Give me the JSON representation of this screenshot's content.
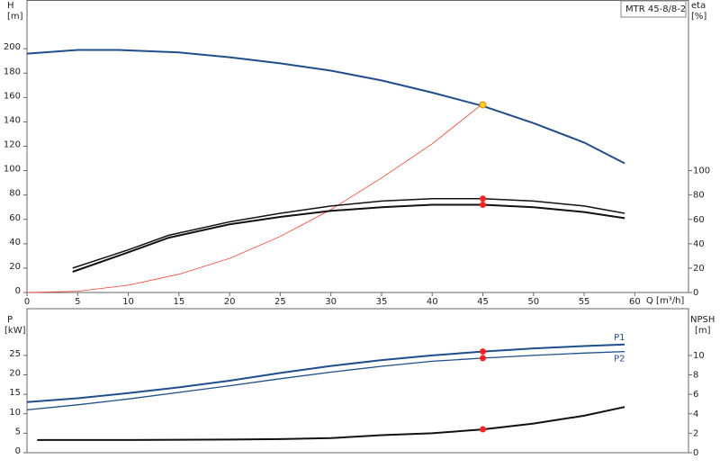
{
  "chart_data": [
    {
      "type": "line",
      "model_label": "MTR 45-8/8-2",
      "y_label": "H",
      "y_unit": "[m]",
      "y2_label": "eta",
      "y2_unit": "[%]",
      "x_label": "Q [m³/h]",
      "xlim": [
        0,
        65.3
      ],
      "xticks": [
        0,
        5,
        10,
        15,
        20,
        25,
        30,
        35,
        40,
        45,
        50,
        55,
        60
      ],
      "ylim": [
        0,
        240
      ],
      "yticks": [
        0,
        20,
        40,
        60,
        80,
        100,
        120,
        140,
        160,
        180,
        200
      ],
      "y2lim": [
        0,
        240
      ],
      "y2ticks": [
        0,
        20,
        40,
        60,
        80,
        100
      ],
      "grid": false,
      "series": [
        {
          "color": "#1f4e8c",
          "width": 2,
          "axis": "y",
          "x": [
            0,
            5,
            9,
            15,
            20,
            25,
            30,
            35,
            40,
            45,
            50,
            55,
            59
          ],
          "values": [
            196,
            199,
            199,
            197,
            193,
            188,
            182,
            174,
            164,
            153,
            139,
            123,
            106
          ]
        },
        {
          "color": "#ff3b30",
          "width": 0.8,
          "axis": "y",
          "x": [
            0,
            5,
            10,
            15,
            20,
            25,
            30,
            35,
            40,
            45
          ],
          "values": [
            0,
            1,
            6,
            15,
            28,
            46,
            68,
            94,
            122,
            155
          ]
        },
        {
          "color": "#111111",
          "width": 1.5,
          "axis": "y2",
          "x": [
            4.5,
            10,
            14,
            20,
            25,
            30,
            35,
            40,
            45,
            50,
            55,
            59
          ],
          "values": [
            20,
            35,
            47,
            58,
            65,
            71,
            75,
            77,
            77,
            75,
            71,
            65
          ]
        },
        {
          "color": "#111111",
          "width": 2,
          "axis": "y2",
          "x": [
            4.5,
            10,
            14,
            20,
            25,
            30,
            35,
            40,
            45,
            50,
            55,
            59
          ],
          "values": [
            17,
            33,
            45,
            56,
            62,
            67,
            70,
            72,
            72,
            70,
            66,
            61
          ]
        }
      ],
      "points": [
        {
          "x": 45,
          "value": 154,
          "axis": "y",
          "color": "#ffd21f"
        },
        {
          "x": 45,
          "value": 77,
          "axis": "y2",
          "color": "#ff2020"
        },
        {
          "x": 45,
          "value": 72,
          "axis": "y2",
          "color": "#ff2020"
        }
      ]
    },
    {
      "type": "line",
      "y_label": "P",
      "y_unit": "[kW]",
      "y2_label": "NPSH",
      "y2_unit": "[m]",
      "xlim": [
        0,
        65.3
      ],
      "ylim": [
        0,
        37
      ],
      "yticks": [
        0,
        5,
        10,
        15,
        20,
        25
      ],
      "y2lim": [
        0,
        14.8
      ],
      "y2ticks": [
        0,
        2,
        4,
        6,
        8,
        10
      ],
      "grid": false,
      "series": [
        {
          "name": "P1",
          "color": "#1f4e8c",
          "width": 2,
          "axis": "y",
          "x": [
            0,
            5,
            10,
            15,
            20,
            25,
            30,
            35,
            40,
            45,
            50,
            55,
            59
          ],
          "values": [
            13,
            14,
            15.3,
            16.8,
            18.5,
            20.5,
            22.3,
            23.8,
            25,
            26,
            26.8,
            27.4,
            27.8
          ]
        },
        {
          "name": "P2",
          "color": "#1f4e8c",
          "width": 1.3,
          "axis": "y",
          "x": [
            0,
            5,
            10,
            15,
            20,
            25,
            30,
            35,
            40,
            45,
            50,
            55,
            59
          ],
          "values": [
            11,
            12.3,
            13.8,
            15.5,
            17.2,
            19,
            20.7,
            22.2,
            23.5,
            24.3,
            25,
            25.6,
            26
          ]
        },
        {
          "color": "#111111",
          "width": 2,
          "axis": "y2",
          "x": [
            1,
            10,
            20,
            25,
            30,
            35,
            40,
            45,
            50,
            55,
            59
          ],
          "values": [
            1.3,
            1.3,
            1.35,
            1.4,
            1.5,
            1.8,
            2.0,
            2.4,
            3.0,
            3.8,
            4.7
          ]
        }
      ],
      "points": [
        {
          "x": 45,
          "value": 26,
          "axis": "y",
          "color": "#ff2020"
        },
        {
          "x": 45,
          "value": 24.3,
          "axis": "y",
          "color": "#ff2020"
        },
        {
          "x": 45,
          "value": 2.4,
          "axis": "y2",
          "color": "#ff2020"
        }
      ]
    }
  ]
}
